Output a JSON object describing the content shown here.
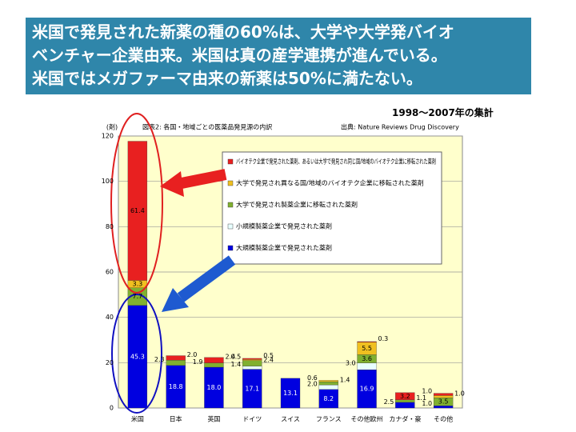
{
  "slide": {
    "title_lines": [
      "米国で発見された新薬の種の60%は、大学や大学発バイオ",
      "ベンチャー企業由来。米国は真の産学連携が進んでいる。",
      "米国ではメガファーマ由来の新薬は50%に満たない。"
    ],
    "note": "1998〜2007年の集計"
  },
  "chart_data": {
    "type": "stacked_bar",
    "title": "図表2: 各国・地域ごとの医薬品発見源の内訳",
    "source": "出典: Nature Reviews Drug Discovery",
    "y_label": "(剤)",
    "categories": [
      "米国",
      "日本",
      "英国",
      "ドイツ",
      "スイス",
      "フランス",
      "その他欧州",
      "カナダ・豪",
      "その他"
    ],
    "series": [
      {
        "name": "大規模製薬企業で発見された薬剤",
        "color": "#0000e0",
        "values": [
          45.3,
          18.8,
          18.0,
          17.1,
          13.1,
          8.2,
          16.9,
          2.5,
          1.0
        ],
        "value_labels": [
          "45.3",
          "18.8",
          "18.0",
          "17.1",
          "13.1",
          "8.2",
          "16.9",
          "2.5",
          "1.0"
        ]
      },
      {
        "name": "小規模製薬企業で発見された薬剤",
        "color": "#e8ffff",
        "values": [
          null,
          null,
          null,
          1.4,
          null,
          2.0,
          3.0,
          null,
          null
        ],
        "value_labels": [
          null,
          null,
          null,
          "1.4",
          null,
          "2.0",
          "3.0",
          null,
          null
        ]
      },
      {
        "name": "大学で発見され製薬企業に移転された薬剤",
        "color": "#80b030",
        "values": [
          7.7,
          2.3,
          1.9,
          2.4,
          null,
          1.4,
          3.6,
          1.1,
          3.5
        ],
        "value_labels": [
          "7.7",
          "2.3",
          "1.9",
          "2.4",
          null,
          "1.4",
          "3.6",
          "1.1",
          "3.5"
        ]
      },
      {
        "name": "大学で発見され異なる国/地域のバイオテク企業に移転された薬剤",
        "color": "#f0c020",
        "values": [
          3.3,
          null,
          null,
          0.5,
          null,
          0.6,
          5.5,
          null,
          1.0
        ],
        "value_labels": [
          "3.3",
          null,
          null,
          "0.5",
          null,
          "0.6",
          "5.5",
          null,
          "1.0"
        ]
      },
      {
        "name": "バイオテク企業で発見された薬剤、あるいは大学で発見され同じ国/地域のバイオテク企業に移転された薬剤",
        "color": "#e82020",
        "values": [
          61.4,
          2.0,
          2.4,
          0.5,
          null,
          null,
          0.3,
          3.2,
          1.0
        ],
        "value_labels": [
          "61.4",
          "2.0",
          "2.4",
          "0.5",
          null,
          null,
          "0.3",
          "3.2",
          "1.0"
        ]
      }
    ],
    "ylim": [
      0,
      120
    ],
    "yticks": [
      0,
      20,
      40,
      60,
      80,
      100,
      120
    ],
    "grid": true
  }
}
